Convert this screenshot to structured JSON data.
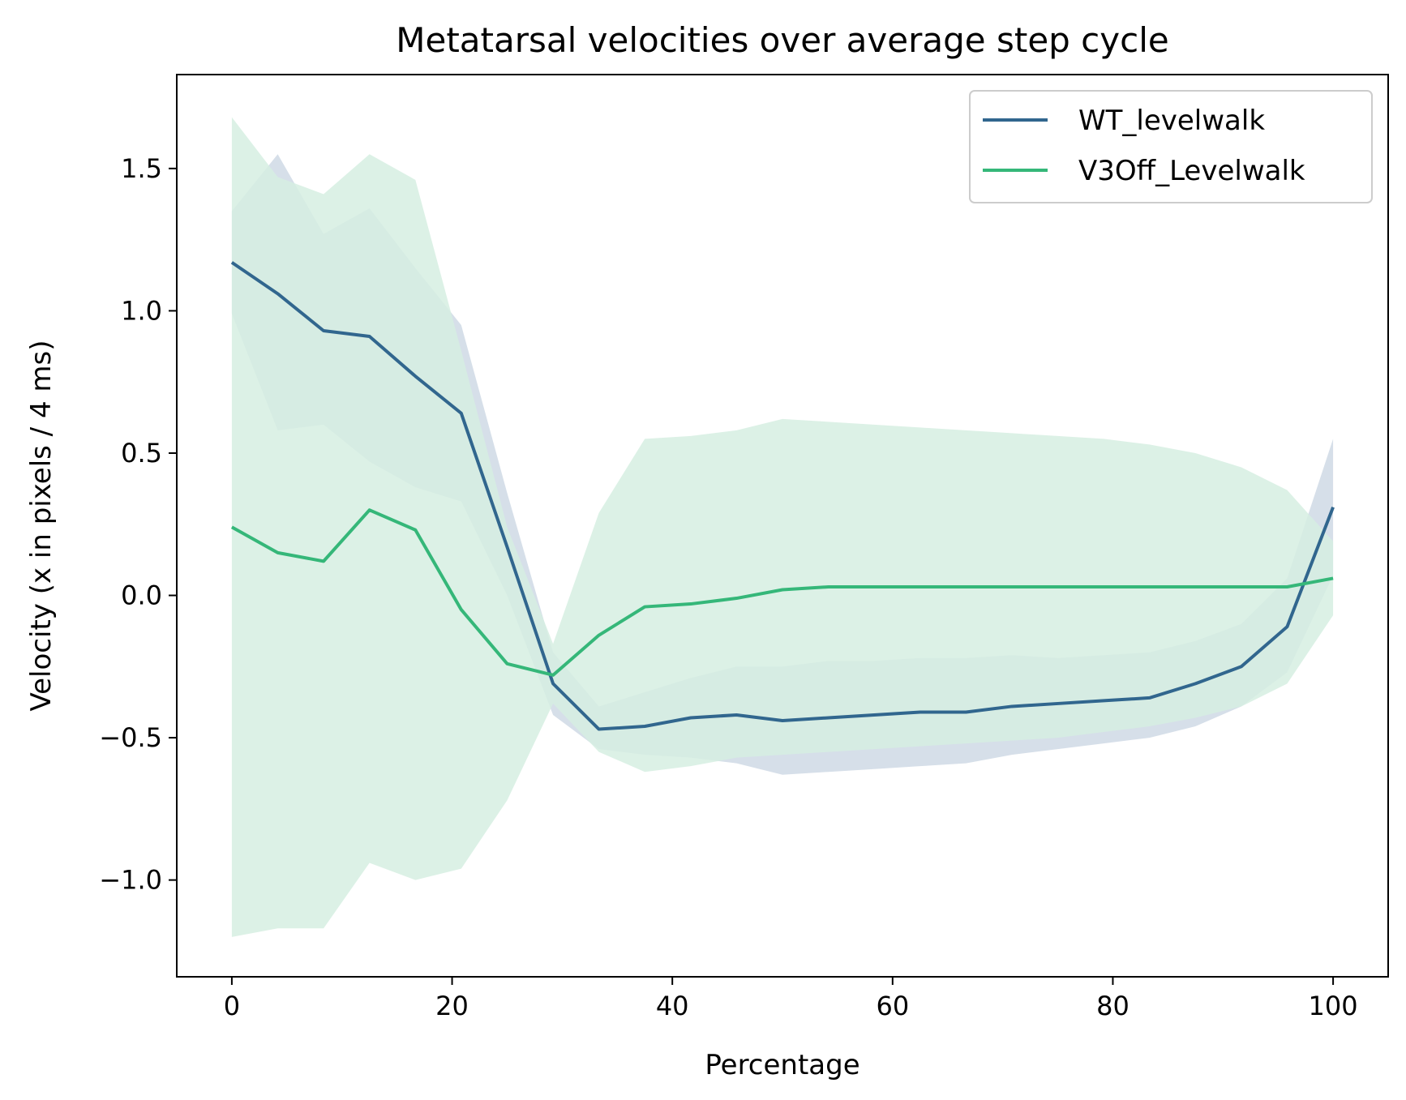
{
  "chart_data": {
    "type": "line",
    "title": "Metatarsal velocities over average step cycle",
    "xlabel": "Percentage",
    "ylabel": "Velocity (x in pixels / 4 ms)",
    "xlim": [
      -5,
      105
    ],
    "ylim": [
      -1.34,
      1.83
    ],
    "xticks": [
      0,
      20,
      40,
      60,
      80,
      100
    ],
    "yticks": [
      -1.0,
      -0.5,
      0.0,
      0.5,
      1.0,
      1.5
    ],
    "ytick_labels": [
      "−1.0",
      "−0.5",
      "0.0",
      "0.5",
      "1.0",
      "1.5"
    ],
    "grid": false,
    "legend_position": "top-right",
    "x": [
      0,
      4.17,
      8.33,
      12.5,
      16.67,
      20.83,
      25,
      29.17,
      33.33,
      37.5,
      41.67,
      45.83,
      50,
      54.17,
      58.33,
      62.5,
      66.67,
      70.83,
      75,
      79.17,
      83.33,
      87.5,
      91.67,
      95.83,
      100
    ],
    "series": [
      {
        "name": "WT_levelwalk",
        "color": "#31668e",
        "band_color": "#d6dfe9",
        "values": [
          1.17,
          1.06,
          0.93,
          0.91,
          0.77,
          0.64,
          0.17,
          -0.31,
          -0.47,
          -0.46,
          -0.43,
          -0.42,
          -0.44,
          -0.43,
          -0.42,
          -0.41,
          -0.41,
          -0.39,
          -0.38,
          -0.37,
          -0.36,
          -0.31,
          -0.25,
          -0.11,
          0.31
        ],
        "upper": [
          1.35,
          1.55,
          1.27,
          1.36,
          1.15,
          0.95,
          0.36,
          -0.2,
          -0.39,
          -0.34,
          -0.29,
          -0.25,
          -0.25,
          -0.23,
          -0.23,
          -0.22,
          -0.22,
          -0.21,
          -0.22,
          -0.21,
          -0.2,
          -0.16,
          -0.1,
          0.06,
          0.55
        ],
        "lower": [
          0.99,
          0.58,
          0.6,
          0.47,
          0.38,
          0.33,
          0.0,
          -0.42,
          -0.54,
          -0.56,
          -0.57,
          -0.59,
          -0.63,
          -0.62,
          -0.61,
          -0.6,
          -0.59,
          -0.56,
          -0.54,
          -0.52,
          -0.5,
          -0.46,
          -0.39,
          -0.27,
          0.07
        ]
      },
      {
        "name": "V3Off_Levelwalk",
        "color": "#35b779",
        "band_color": "#d6efe2",
        "values": [
          0.24,
          0.15,
          0.12,
          0.3,
          0.23,
          -0.05,
          -0.24,
          -0.28,
          -0.14,
          -0.04,
          -0.03,
          -0.01,
          0.02,
          0.03,
          0.03,
          0.03,
          0.03,
          0.03,
          0.03,
          0.03,
          0.03,
          0.03,
          0.03,
          0.03,
          0.06
        ],
        "upper": [
          1.68,
          1.47,
          1.41,
          1.55,
          1.46,
          0.86,
          0.24,
          -0.17,
          0.29,
          0.55,
          0.56,
          0.58,
          0.62,
          0.61,
          0.6,
          0.59,
          0.58,
          0.57,
          0.56,
          0.55,
          0.53,
          0.5,
          0.45,
          0.37,
          0.19
        ],
        "lower": [
          -1.2,
          -1.17,
          -1.17,
          -0.94,
          -1.0,
          -0.96,
          -0.72,
          -0.38,
          -0.55,
          -0.62,
          -0.6,
          -0.57,
          -0.56,
          -0.55,
          -0.54,
          -0.53,
          -0.52,
          -0.51,
          -0.5,
          -0.48,
          -0.46,
          -0.43,
          -0.39,
          -0.31,
          -0.07
        ]
      }
    ]
  }
}
